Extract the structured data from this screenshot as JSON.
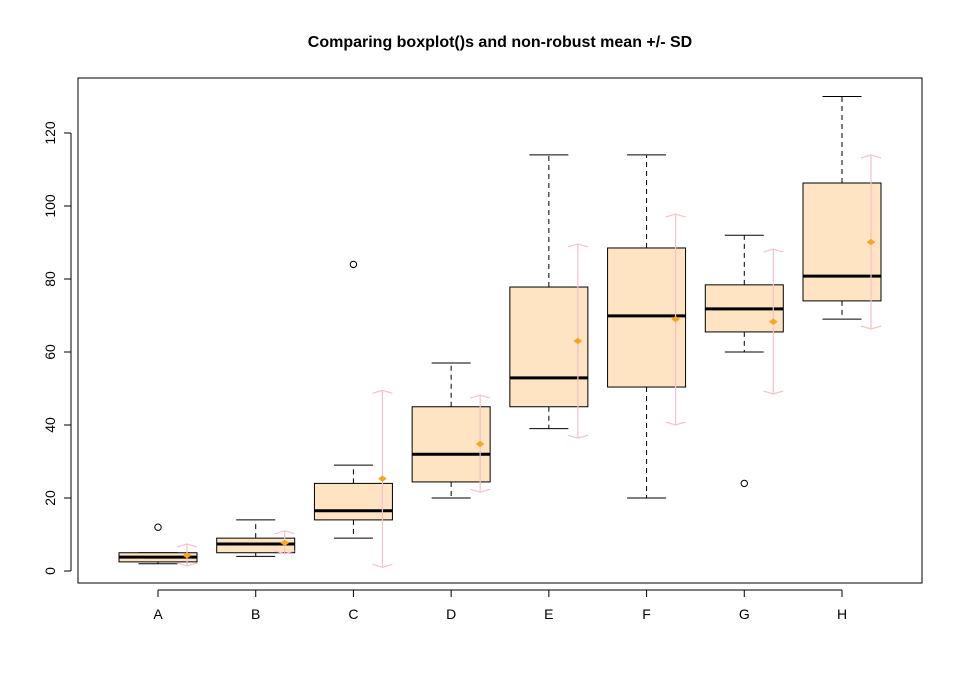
{
  "chart_data": {
    "type": "boxplot",
    "title": "Comparing boxplot()s and non-robust mean +/- SD",
    "xlabel": "",
    "ylabel": "",
    "categories": [
      "A",
      "B",
      "C",
      "D",
      "E",
      "F",
      "G",
      "H"
    ],
    "ylim": [
      -3,
      135
    ],
    "yticks": [
      0,
      20,
      40,
      60,
      80,
      100,
      120
    ],
    "ytick_labels": [
      "0",
      "20",
      "40",
      "60",
      "80",
      "100",
      "120"
    ],
    "grid": false,
    "legend": "none",
    "colors": {
      "box_fill": "#FFE4C4",
      "box_border": "#000000",
      "mean_marker": "#F5A623",
      "sd_bar": "#F4C2C9"
    },
    "boxes": [
      {
        "name": "A",
        "whisker_low": 2,
        "q1": 2.5,
        "median": 3.8,
        "q3": 5,
        "whisker_high": 5,
        "outliers": [
          12
        ]
      },
      {
        "name": "B",
        "whisker_low": 4,
        "q1": 5,
        "median": 7.4,
        "q3": 9,
        "whisker_high": 14,
        "outliers": []
      },
      {
        "name": "C",
        "whisker_low": 9,
        "q1": 14,
        "median": 16.5,
        "q3": 24,
        "whisker_high": 29,
        "outliers": [
          84
        ]
      },
      {
        "name": "D",
        "whisker_low": 20,
        "q1": 24.4,
        "median": 32,
        "q3": 45,
        "whisker_high": 57,
        "outliers": []
      },
      {
        "name": "E",
        "whisker_low": 39,
        "q1": 45,
        "median": 52.9,
        "q3": 77.8,
        "whisker_high": 114,
        "outliers": []
      },
      {
        "name": "F",
        "whisker_low": 20,
        "q1": 50.4,
        "median": 69.9,
        "q3": 88.5,
        "whisker_high": 114,
        "outliers": []
      },
      {
        "name": "G",
        "whisker_low": 60,
        "q1": 65.5,
        "median": 71.8,
        "q3": 78.4,
        "whisker_high": 92,
        "outliers": [
          24
        ]
      },
      {
        "name": "H",
        "whisker_low": 69,
        "q1": 74,
        "median": 80.8,
        "q3": 106.3,
        "whisker_high": 130,
        "outliers": []
      }
    ],
    "mean_sd": [
      {
        "name": "A",
        "mean": 4.3,
        "sd_low": 1.4,
        "sd_high": 7.4
      },
      {
        "name": "B",
        "mean": 7.7,
        "sd_low": 4.7,
        "sd_high": 11
      },
      {
        "name": "C",
        "mean": 25.3,
        "sd_low": 1,
        "sd_high": 49.5
      },
      {
        "name": "D",
        "mean": 34.8,
        "sd_low": 21.6,
        "sd_high": 48.2
      },
      {
        "name": "E",
        "mean": 63,
        "sd_low": 36.4,
        "sd_high": 89.6
      },
      {
        "name": "F",
        "mean": 69,
        "sd_low": 40,
        "sd_high": 97.8
      },
      {
        "name": "G",
        "mean": 68.3,
        "sd_low": 48.5,
        "sd_high": 88.2
      },
      {
        "name": "H",
        "mean": 90.1,
        "sd_low": 66.3,
        "sd_high": 114
      }
    ]
  }
}
